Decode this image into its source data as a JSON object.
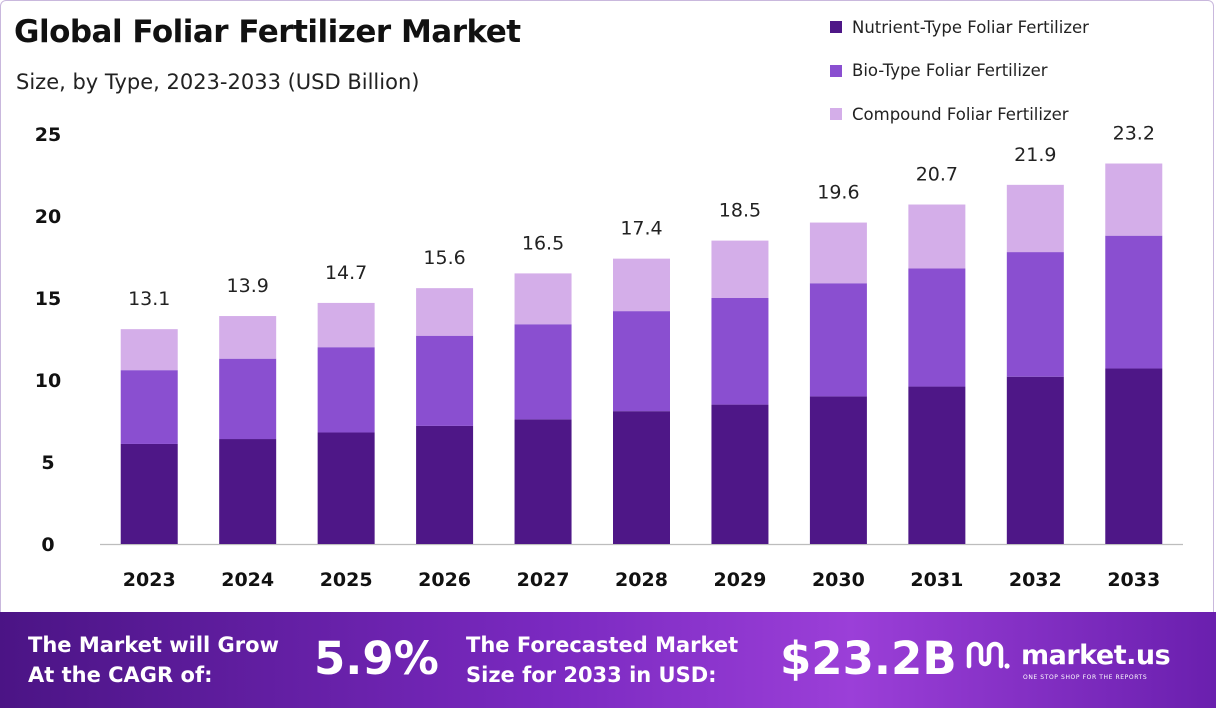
{
  "title": "Global Foliar Fertilizer Market",
  "subtitle": "Size, by Type, 2023-2033 (USD Billion)",
  "colors": {
    "nutrient": "#4e1787",
    "bio": "#8a4fd0",
    "compound": "#d4aee9",
    "axis": "#bdbdbd",
    "text": "#111111"
  },
  "chart_data": {
    "type": "bar",
    "stacked": true,
    "categories": [
      "2023",
      "2024",
      "2025",
      "2026",
      "2027",
      "2028",
      "2029",
      "2030",
      "2031",
      "2032",
      "2033"
    ],
    "series": [
      {
        "name": "Nutrient-Type Foliar Fertilizer",
        "color": "#4e1787",
        "values": [
          6.1,
          6.4,
          6.8,
          7.2,
          7.6,
          8.1,
          8.5,
          9.0,
          9.6,
          10.2,
          10.7
        ]
      },
      {
        "name": "Bio-Type Foliar Fertilizer",
        "color": "#8a4fd0",
        "values": [
          4.5,
          4.9,
          5.2,
          5.5,
          5.8,
          6.1,
          6.5,
          6.9,
          7.2,
          7.6,
          8.1
        ]
      },
      {
        "name": "Compound Foliar Fertilizer",
        "color": "#d4aee9",
        "values": [
          2.5,
          2.6,
          2.7,
          2.9,
          3.1,
          3.2,
          3.5,
          3.7,
          3.9,
          4.1,
          4.4
        ]
      }
    ],
    "totals": [
      "13.1",
      "13.9",
      "14.7",
      "15.6",
      "16.5",
      "17.4",
      "18.5",
      "19.6",
      "20.7",
      "21.9",
      "23.2"
    ],
    "yticks": [
      "0",
      "5",
      "10",
      "15",
      "20",
      "25"
    ],
    "ylim": [
      0,
      25
    ],
    "xlabel": "",
    "ylabel": "",
    "grid": false,
    "legend_position": "top-right"
  },
  "banner": {
    "cagr_label_line1": "The Market will Grow",
    "cagr_label_line2": "At the CAGR of:",
    "cagr_value": "5.9%",
    "forecast_label_line1": "The Forecasted Market",
    "forecast_label_line2": "Size for 2033 in USD:",
    "forecast_value": "$23.2B",
    "brand_name": "market.us",
    "brand_tagline": "ONE STOP SHOP FOR THE REPORTS",
    "brand_icon": "market-us-logo-icon"
  }
}
